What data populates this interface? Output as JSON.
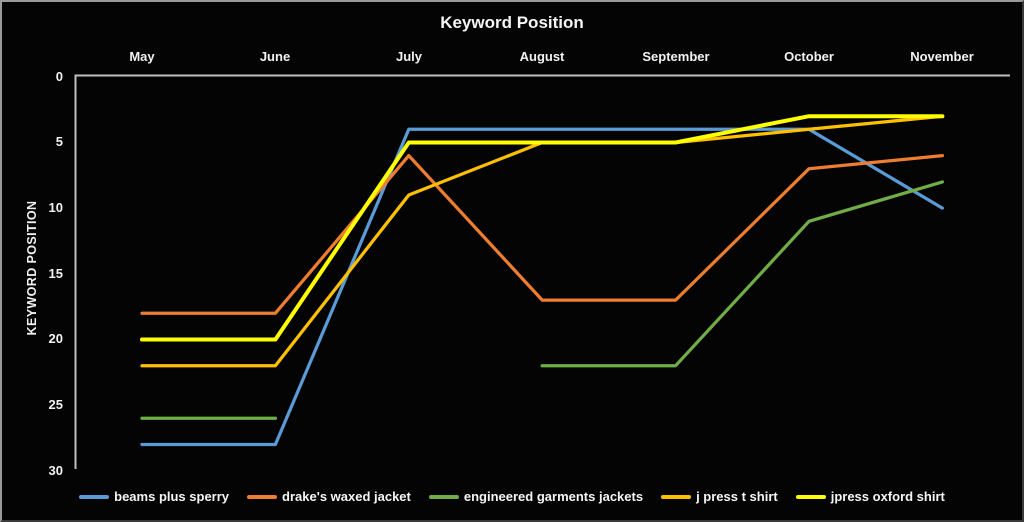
{
  "chart_data": {
    "type": "line",
    "title": "Keyword Position",
    "ylabel": "KEYWORD POSITION",
    "xlabel": "",
    "categories": [
      "May",
      "June",
      "July",
      "August",
      "September",
      "October",
      "November"
    ],
    "y_ticks": [
      "0",
      "5",
      "10",
      "15",
      "20",
      "25",
      "30"
    ],
    "ylim": [
      0,
      30
    ],
    "y_axis_inverted": true,
    "grid": false,
    "legend_position": "bottom",
    "axis_color": "#BFBFBF",
    "background_color": "#040404",
    "text_color": "#F2F2F2",
    "series": [
      {
        "name": "beams plus sperry",
        "color": "#5B9BD5",
        "stroke_width": 3.25,
        "values": [
          28,
          28,
          4,
          4,
          4,
          4,
          10
        ]
      },
      {
        "name": "drake's waxed jacket",
        "color": "#ED7D31",
        "stroke_width": 3.25,
        "values": [
          18,
          18,
          6,
          17,
          17,
          7,
          6
        ]
      },
      {
        "name": "engineered garments jackets",
        "color": "#70AD47",
        "stroke_width": 3.25,
        "values": [
          26,
          26,
          null,
          22,
          22,
          11,
          8
        ]
      },
      {
        "name": "j press t shirt",
        "color": "#FFC000",
        "stroke_width": 3.25,
        "values": [
          22,
          22,
          9,
          5,
          5,
          4,
          3
        ]
      },
      {
        "name": "jpress oxford shirt",
        "color": "#FFFF00",
        "stroke_width": 4,
        "values": [
          20,
          20,
          5,
          5,
          5,
          3,
          3
        ]
      }
    ]
  }
}
